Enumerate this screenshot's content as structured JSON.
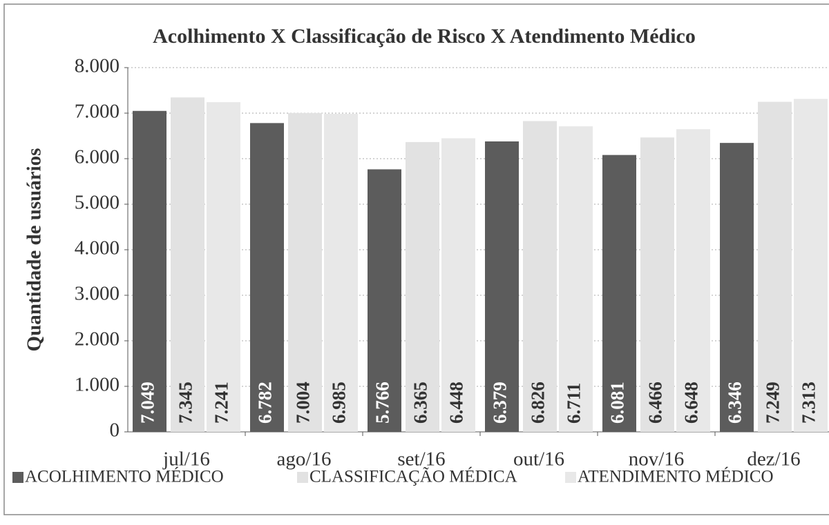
{
  "chart_data": {
    "type": "bar",
    "title": "Acolhimento X Classificação de Risco X Atendimento Médico",
    "y_label": "Quantidade de usuários",
    "categories": [
      "jul/16",
      "ago/16",
      "set/16",
      "out/16",
      "nov/16",
      "dez/16"
    ],
    "series": [
      {
        "name": "ACOLHIMENTO MÉDICO",
        "color": "#5c5c5c",
        "values": [
          7049,
          6782,
          5766,
          6379,
          6081,
          6346
        ],
        "value_labels": [
          "7.049",
          "6.782",
          "5.766",
          "6.379",
          "6.081",
          "6.346"
        ]
      },
      {
        "name": "CLASSIFICAÇÃO MÉDICA",
        "color": "#e2e2e2",
        "values": [
          7345,
          7004,
          6365,
          6826,
          6466,
          7249
        ],
        "value_labels": [
          "7.345",
          "7.004",
          "6.365",
          "6.826",
          "6.466",
          "7.249"
        ]
      },
      {
        "name": "ATENDIMENTO MÉDICO",
        "color": "#e8e8e8",
        "values": [
          7241,
          6985,
          6448,
          6711,
          6648,
          7313
        ],
        "value_labels": [
          "7.241",
          "6.985",
          "6.448",
          "6.711",
          "6.648",
          "7.313"
        ]
      }
    ],
    "ylim": [
      0,
      8000
    ],
    "yticks": [
      0,
      {
        "value": 1000,
        "label": "1.000"
      },
      {
        "value": 2000,
        "label": "2.000"
      },
      {
        "value": 3000,
        "label": "3.000"
      },
      {
        "value": 4000,
        "label": "4.000"
      },
      {
        "value": 5000,
        "label": "5.000"
      },
      {
        "value": 6000,
        "label": "6.000"
      },
      {
        "value": 7000,
        "label": "7.000"
      },
      {
        "value": 8000,
        "label": "8.000"
      }
    ],
    "grid": true,
    "legend": "bottom"
  }
}
